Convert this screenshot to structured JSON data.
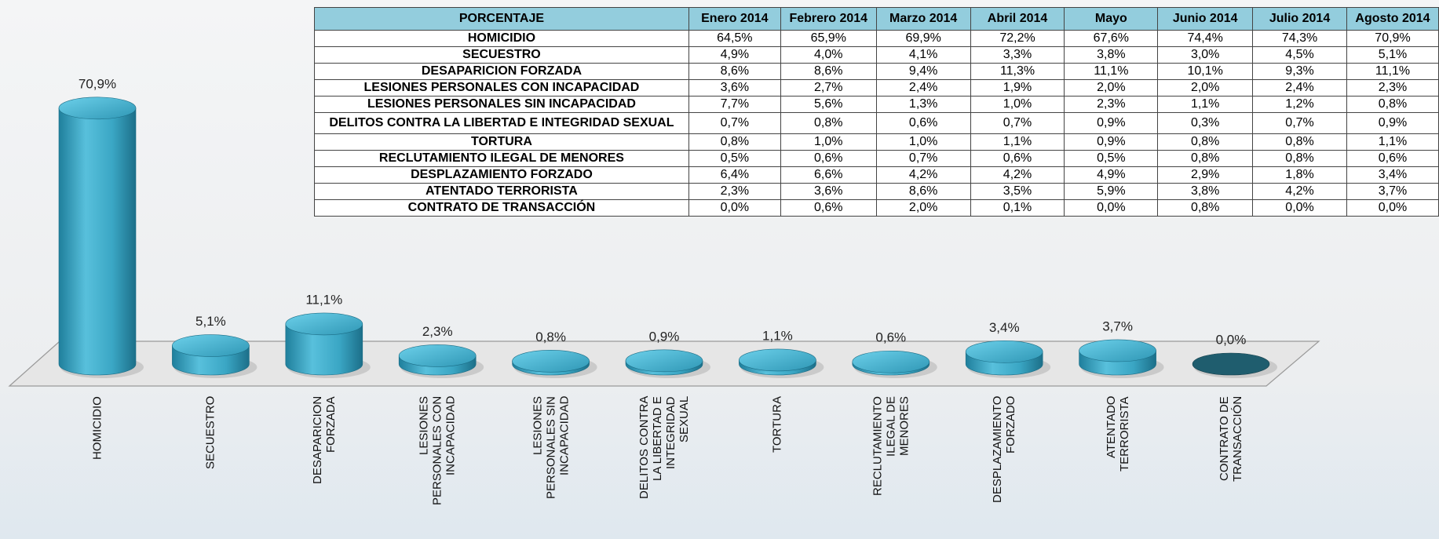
{
  "chart_data": {
    "type": "bar3d",
    "categories": [
      "HOMICIDIO",
      "SECUESTRO",
      "DESAPARICION FORZADA",
      "LESIONES PERSONALES CON INCAPACIDAD",
      "LESIONES PERSONALES SIN INCAPACIDAD",
      "DELITOS CONTRA LA LIBERTAD E INTEGRIDAD SEXUAL",
      "TORTURA",
      "RECLUTAMIENTO ILEGAL DE MENORES",
      "DESPLAZAMIENTO FORZADO",
      "ATENTADO TERRORISTA",
      "CONTRATO DE TRANSACCIÓN"
    ],
    "values": [
      70.9,
      5.1,
      11.1,
      2.3,
      0.8,
      0.9,
      1.1,
      0.6,
      3.4,
      3.7,
      0.0
    ],
    "value_labels": [
      "70,9%",
      "5,1%",
      "11,1%",
      "2,3%",
      "0,8%",
      "0,9%",
      "1,1%",
      "0,6%",
      "3,4%",
      "3,7%",
      "0,0%"
    ],
    "color": "#3aa6c4"
  },
  "table": {
    "header": [
      "PORCENTAJE",
      "Enero 2014",
      "Febrero 2014",
      "Marzo 2014",
      "Abril 2014",
      "Mayo",
      "Junio 2014",
      "Julio 2014",
      "Agosto 2014"
    ],
    "rows": [
      [
        "HOMICIDIO",
        "64,5%",
        "65,9%",
        "69,9%",
        "72,2%",
        "67,6%",
        "74,4%",
        "74,3%",
        "70,9%"
      ],
      [
        "SECUESTRO",
        "4,9%",
        "4,0%",
        "4,1%",
        "3,3%",
        "3,8%",
        "3,0%",
        "4,5%",
        "5,1%"
      ],
      [
        "DESAPARICION FORZADA",
        "8,6%",
        "8,6%",
        "9,4%",
        "11,3%",
        "11,1%",
        "10,1%",
        "9,3%",
        "11,1%"
      ],
      [
        "LESIONES PERSONALES CON INCAPACIDAD",
        "3,6%",
        "2,7%",
        "2,4%",
        "1,9%",
        "2,0%",
        "2,0%",
        "2,4%",
        "2,3%"
      ],
      [
        "LESIONES PERSONALES SIN INCAPACIDAD",
        "7,7%",
        "5,6%",
        "1,3%",
        "1,0%",
        "2,3%",
        "1,1%",
        "1,2%",
        "0,8%"
      ],
      [
        "DELITOS CONTRA LA LIBERTAD E INTEGRIDAD SEXUAL",
        "0,7%",
        "0,8%",
        "0,6%",
        "0,7%",
        "0,9%",
        "0,3%",
        "0,7%",
        "0,9%"
      ],
      [
        "TORTURA",
        "0,8%",
        "1,0%",
        "1,0%",
        "1,1%",
        "0,9%",
        "0,8%",
        "0,8%",
        "1,1%"
      ],
      [
        "RECLUTAMIENTO ILEGAL DE MENORES",
        "0,5%",
        "0,6%",
        "0,7%",
        "0,6%",
        "0,5%",
        "0,8%",
        "0,8%",
        "0,6%"
      ],
      [
        "DESPLAZAMIENTO FORZADO",
        "6,4%",
        "6,6%",
        "4,2%",
        "4,2%",
        "4,9%",
        "2,9%",
        "1,8%",
        "3,4%"
      ],
      [
        "ATENTADO TERRORISTA",
        "2,3%",
        "3,6%",
        "8,6%",
        "3,5%",
        "5,9%",
        "3,8%",
        "4,2%",
        "3,7%"
      ],
      [
        "CONTRATO DE TRANSACCIÓN",
        "0,0%",
        "0,6%",
        "2,0%",
        "0,1%",
        "0,0%",
        "0,8%",
        "0,0%",
        "0,0%"
      ]
    ]
  }
}
